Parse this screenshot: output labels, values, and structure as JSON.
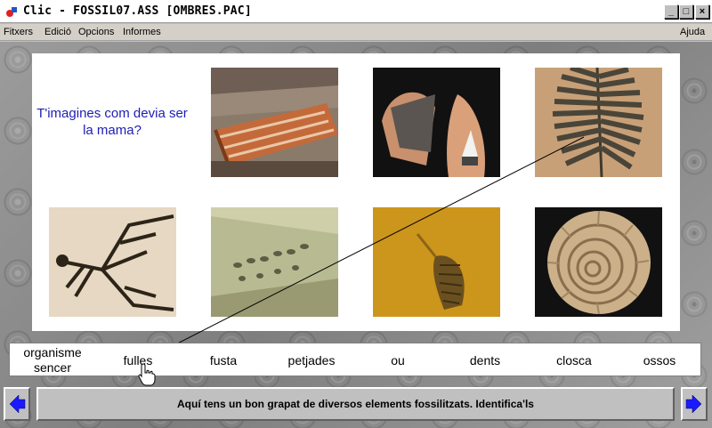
{
  "window": {
    "title": "Clic - FOSSIL07.ASS [OMBRES.PAC]",
    "buttons": [
      "_",
      "□",
      "×"
    ]
  },
  "menu": {
    "items": [
      "Fitxers",
      "Edició",
      "Opcions",
      "Informes"
    ],
    "help": "Ajuda"
  },
  "question": "T'imagines com devia ser la mama?",
  "images": [
    {
      "name": "petrified-wood-image"
    },
    {
      "name": "shark-tooth-image"
    },
    {
      "name": "fern-leaf-fossil-image"
    },
    {
      "name": "fossil-skeleton-image"
    },
    {
      "name": "footprints-fossil-image"
    },
    {
      "name": "shell-fragment-fossil-image"
    },
    {
      "name": "ammonite-shell-image"
    }
  ],
  "words": [
    "organisme sencer",
    "fulles",
    "fusta",
    "petjades",
    "ou",
    "dents",
    "closca",
    "ossos"
  ],
  "status": "Aquí tens un bon grapat de diversos elements fossilitzats. Identifica'ls",
  "icons": {
    "prev": "arrow-left-icon",
    "next": "arrow-right-icon",
    "app": "clic-app-icon",
    "cursor": "hand-pointer-icon"
  },
  "colors": {
    "question": "#1d1db4",
    "nav_arrow": "#1a1aff"
  }
}
